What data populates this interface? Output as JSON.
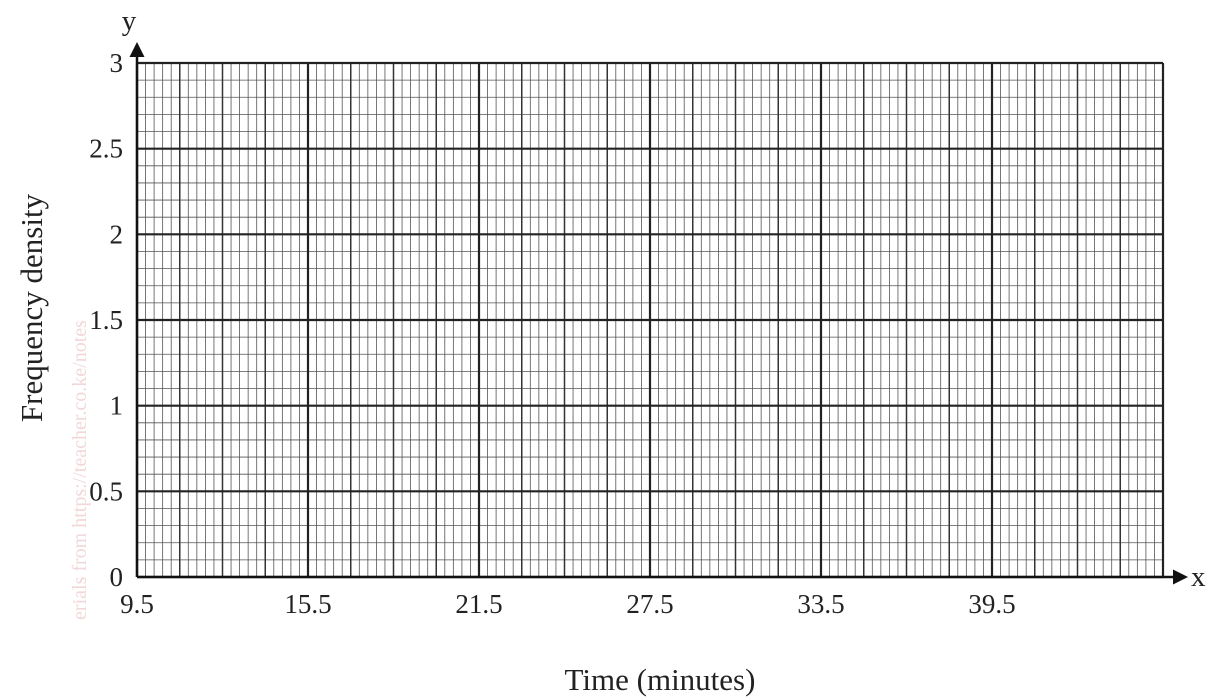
{
  "chart_data": {
    "type": "histogram-grid",
    "title": "",
    "xlabel": "Time (minutes)",
    "ylabel": "Frequency density",
    "x_axis_letter": "x",
    "y_axis_letter": "y",
    "xlim": [
      9.5,
      45.5
    ],
    "ylim": [
      0,
      3
    ],
    "x_ticks": [
      "9.5",
      "15.5",
      "21.5",
      "27.5",
      "33.5",
      "39.5"
    ],
    "x_tick_values": [
      9.5,
      15.5,
      21.5,
      27.5,
      33.5,
      39.5
    ],
    "y_ticks": [
      "0",
      "0.5",
      "1",
      "1.5",
      "2",
      "2.5",
      "3"
    ],
    "y_tick_values": [
      0,
      0.5,
      1,
      1.5,
      2,
      2.5,
      3
    ],
    "x_minor_step": 0.3,
    "x_mid_step": 1.5,
    "x_major_step": 6,
    "y_minor_step": 0.1,
    "y_major_step": 0.5,
    "grid": true,
    "series": []
  },
  "watermark": "erials from https://teacher.co.ke/notes"
}
